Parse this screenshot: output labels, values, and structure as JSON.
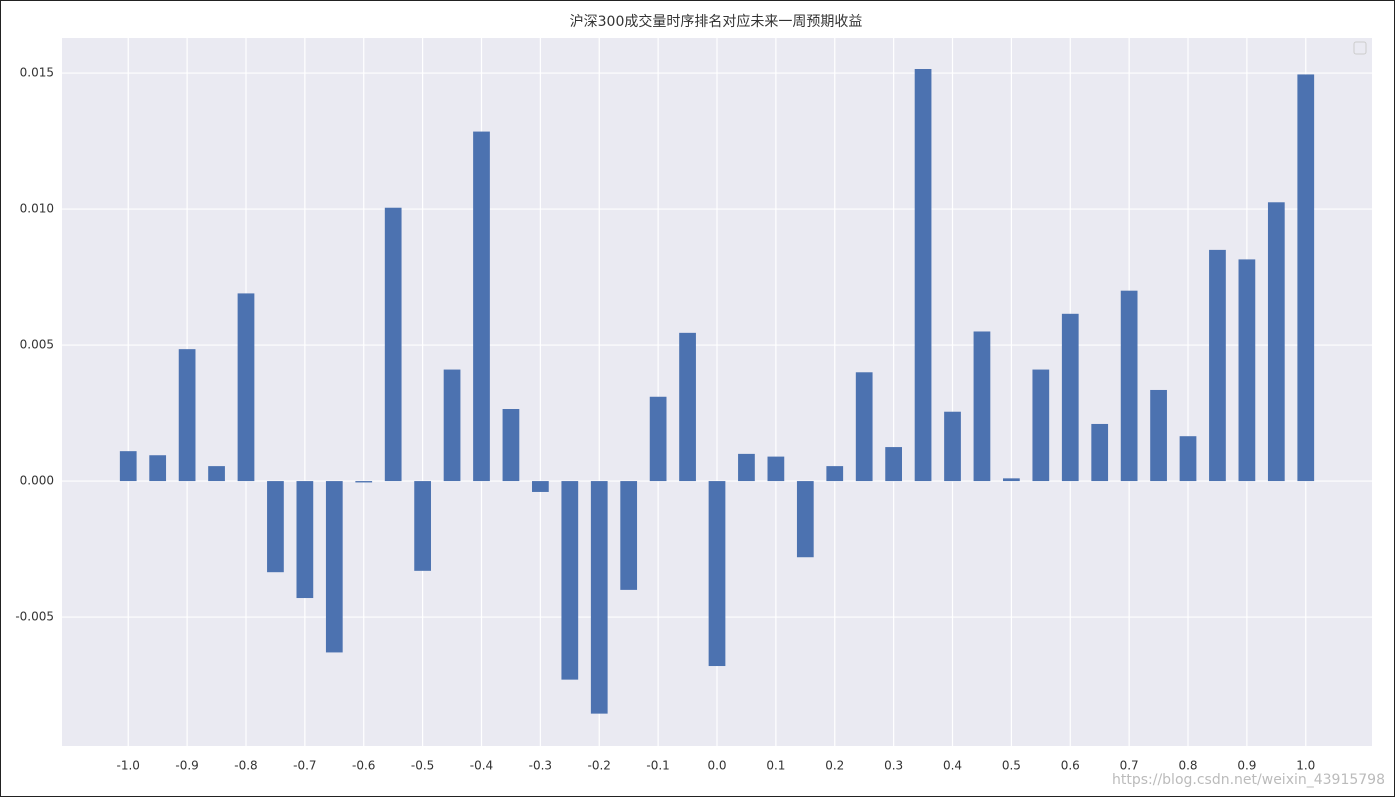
{
  "chart_data": {
    "type": "bar",
    "title": "沪深300成交量时序排名对应未来一周预期收益",
    "x": [
      -1.0,
      -0.95,
      -0.9,
      -0.85,
      -0.8,
      -0.75,
      -0.7,
      -0.65,
      -0.6,
      -0.55,
      -0.5,
      -0.45,
      -0.4,
      -0.35,
      -0.3,
      -0.25,
      -0.2,
      -0.15,
      -0.1,
      -0.05,
      0.0,
      0.05,
      0.1,
      0.15,
      0.2,
      0.25,
      0.3,
      0.35,
      0.4,
      0.45,
      0.5,
      0.55,
      0.6,
      0.65,
      0.7,
      0.75,
      0.8,
      0.85,
      0.9,
      0.95,
      1.0
    ],
    "values": [
      0.0011,
      0.00095,
      0.00485,
      0.00055,
      0.0069,
      -0.00335,
      -0.0043,
      -0.0063,
      -5e-05,
      0.01005,
      -0.0033,
      0.0041,
      0.01285,
      0.00265,
      -0.0004,
      -0.0073,
      -0.00855,
      -0.004,
      0.0031,
      0.00545,
      -0.0068,
      0.001,
      0.0009,
      -0.0028,
      0.00055,
      0.004,
      0.00125,
      0.01515,
      0.00255,
      0.0055,
      0.0001,
      0.0041,
      0.00615,
      0.0021,
      0.007,
      0.00335,
      0.00165,
      0.0085,
      0.00815,
      0.01025,
      0.01495
    ],
    "color": "#4c72b0",
    "xlim": [
      -1.1125,
      1.1125
    ],
    "ylim": [
      -0.00974,
      0.01629
    ],
    "xticks": [
      {
        "value": -1.0,
        "label": "-1.0"
      },
      {
        "value": -0.9,
        "label": "-0.9"
      },
      {
        "value": -0.8,
        "label": "-0.8"
      },
      {
        "value": -0.7,
        "label": "-0.7"
      },
      {
        "value": -0.6,
        "label": "-0.6"
      },
      {
        "value": -0.5,
        "label": "-0.5"
      },
      {
        "value": -0.4,
        "label": "-0.4"
      },
      {
        "value": -0.3,
        "label": "-0.3"
      },
      {
        "value": -0.2,
        "label": "-0.2"
      },
      {
        "value": -0.1,
        "label": "-0.1"
      },
      {
        "value": 0.0,
        "label": "0.0"
      },
      {
        "value": 0.1,
        "label": "0.1"
      },
      {
        "value": 0.2,
        "label": "0.2"
      },
      {
        "value": 0.3,
        "label": "0.3"
      },
      {
        "value": 0.4,
        "label": "0.4"
      },
      {
        "value": 0.5,
        "label": "0.5"
      },
      {
        "value": 0.6,
        "label": "0.6"
      },
      {
        "value": 0.7,
        "label": "0.7"
      },
      {
        "value": 0.8,
        "label": "0.8"
      },
      {
        "value": 0.9,
        "label": "0.9"
      },
      {
        "value": 1.0,
        "label": "1.0"
      }
    ],
    "yticks": [
      -0.005,
      {
        "value": 0,
        "label": "0.000"
      },
      0.005,
      {
        "value": 0.01,
        "label": "0.010"
      },
      0.015
    ],
    "grid": true
  },
  "watermark": "https://blog.csdn.net/weixin_43915798"
}
